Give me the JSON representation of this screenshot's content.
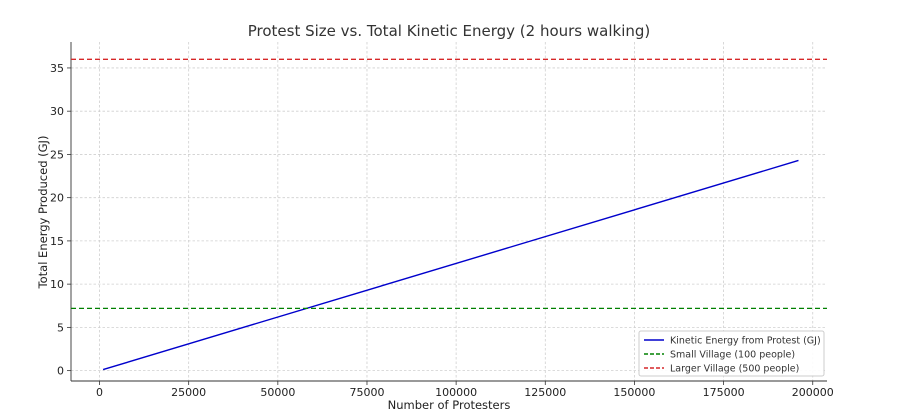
{
  "chart_data": {
    "type": "line",
    "title": "Protest Size vs. Total Kinetic Energy (2 hours walking)",
    "xlabel": "Number of Protesters",
    "ylabel": "Total Energy Produced (GJ)",
    "xlim": [
      -8000,
      204000
    ],
    "ylim": [
      -1.2,
      38
    ],
    "xticks": [
      0,
      25000,
      50000,
      75000,
      100000,
      125000,
      150000,
      175000,
      200000
    ],
    "yticks": [
      0,
      5,
      10,
      15,
      20,
      25,
      30,
      35
    ],
    "grid": true,
    "legend_position": "bottom-right",
    "series": [
      {
        "name": "Kinetic Energy from Protest (GJ)",
        "kind": "line",
        "color": "#0000cc",
        "x": [
          1000,
          196000
        ],
        "y": [
          0.12,
          24.3
        ]
      },
      {
        "name": "Small Village (100 people)",
        "kind": "hline",
        "color": "#008000",
        "y": 7.2
      },
      {
        "name": "Larger Village (500 people)",
        "kind": "hline",
        "color": "#d62728",
        "y": 36.0
      }
    ]
  }
}
